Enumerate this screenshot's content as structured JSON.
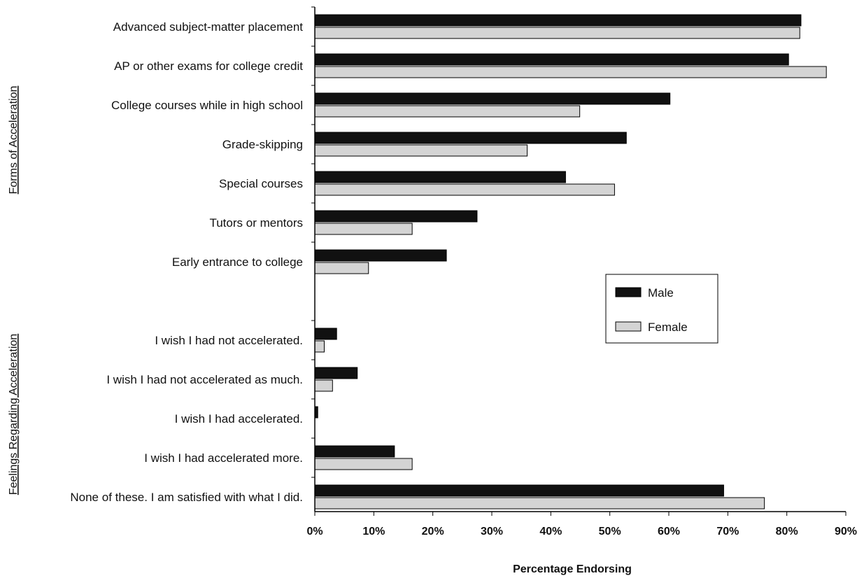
{
  "chart_data": {
    "type": "bar",
    "orientation": "horizontal",
    "xlabel": "Percentage Endorsing",
    "xlim": [
      0,
      90
    ],
    "x_ticks": [
      "0%",
      "10%",
      "20%",
      "30%",
      "40%",
      "50%",
      "60%",
      "70%",
      "80%",
      "90%"
    ],
    "groups": [
      {
        "label": "Forms of Acceleration",
        "categories": [
          "Advanced subject-matter placement",
          "AP or other exams for college credit",
          "College courses while in high school",
          "Grade-skipping",
          "Special courses",
          "Tutors or mentors",
          "Early entrance to college"
        ],
        "male": [
          82.4,
          80.3,
          60.2,
          52.8,
          42.5,
          27.5,
          22.3
        ],
        "female": [
          82.2,
          86.7,
          44.9,
          36.0,
          50.8,
          16.5,
          9.1
        ]
      },
      {
        "label": "Feelings Regarding Acceleration",
        "categories": [
          "I wish I had not accelerated.",
          "I wish I had not accelerated as much.",
          "I wish I had accelerated.",
          "I wish I had accelerated more.",
          "None of these. I am satisfied with what I did."
        ],
        "male": [
          3.7,
          7.2,
          0.5,
          13.5,
          69.3
        ],
        "female": [
          1.6,
          3.0,
          0.0,
          16.5,
          76.2
        ]
      }
    ],
    "series": [
      {
        "name": "Male",
        "color": "#111111"
      },
      {
        "name": "Female",
        "color": "#d4d4d4"
      }
    ],
    "legend_position": "right-middle",
    "grid": false
  }
}
